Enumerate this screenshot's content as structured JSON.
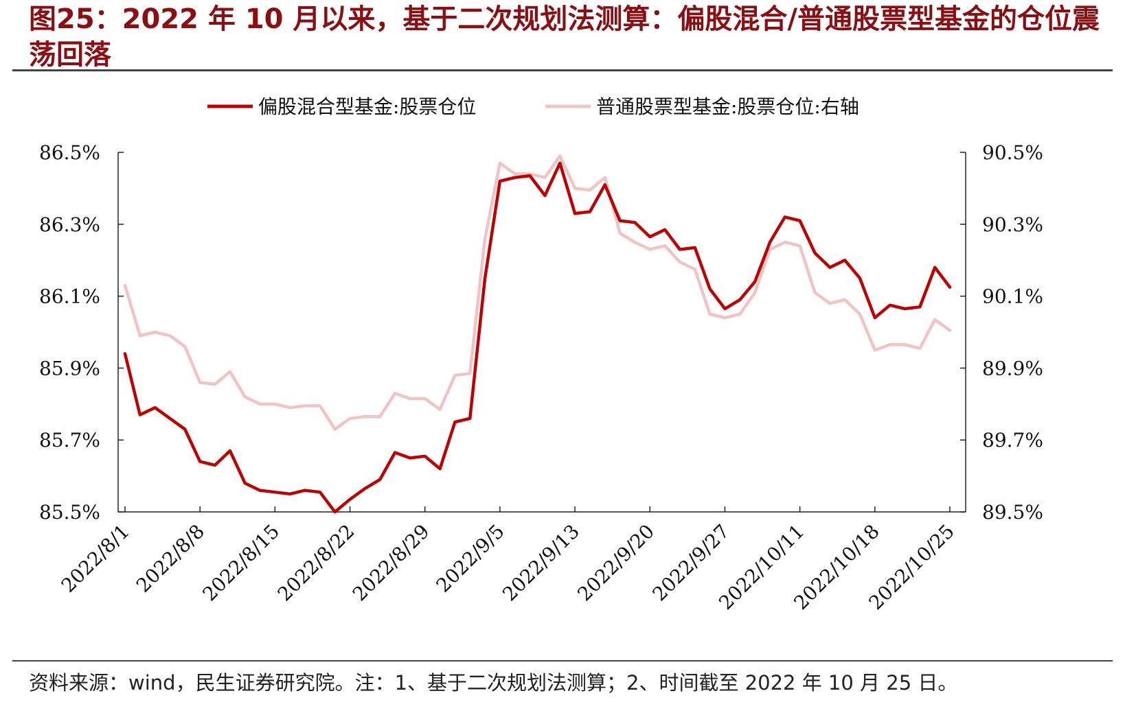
{
  "title": "图25：2022 年 10 月以来，基于二次规划法测算：偏股混合/普通股票型基金的仓位震荡回落",
  "source": "资料来源：wind，民生证券研究院。注：1、基于二次规划法测算；2、时间截至 2022 年 10 月 25 日。",
  "colors": {
    "series1": "#c00000",
    "series2": "#f0c4c4",
    "title": "#8b0f12"
  },
  "chart_data": {
    "type": "line",
    "x_tick_labels": [
      "2022/8/1",
      "2022/8/8",
      "2022/8/15",
      "2022/8/22",
      "2022/8/29",
      "2022/9/5",
      "2022/9/13",
      "2022/9/20",
      "2022/9/27",
      "2022/10/11",
      "2022/10/18",
      "2022/10/25"
    ],
    "y_left": {
      "ticks": [
        "86.5%",
        "86.3%",
        "86.1%",
        "85.9%",
        "85.7%",
        "85.5%"
      ],
      "ylim": [
        85.5,
        86.5
      ]
    },
    "y_right": {
      "ticks": [
        "90.5%",
        "90.3%",
        "90.1%",
        "89.9%",
        "89.7%",
        "89.5%"
      ],
      "ylim": [
        89.5,
        90.5
      ]
    },
    "legend_position": "top",
    "x": [
      "2022/8/1",
      "2022/8/2",
      "2022/8/3",
      "2022/8/4",
      "2022/8/5",
      "2022/8/8",
      "2022/8/9",
      "2022/8/10",
      "2022/8/11",
      "2022/8/12",
      "2022/8/15",
      "2022/8/16",
      "2022/8/17",
      "2022/8/18",
      "2022/8/19",
      "2022/8/22",
      "2022/8/23",
      "2022/8/24",
      "2022/8/25",
      "2022/8/26",
      "2022/8/29",
      "2022/8/30",
      "2022/8/31",
      "2022/9/1",
      "2022/9/2",
      "2022/9/5",
      "2022/9/6",
      "2022/9/7",
      "2022/9/8",
      "2022/9/9",
      "2022/9/13",
      "2022/9/14",
      "2022/9/15",
      "2022/9/16",
      "2022/9/19",
      "2022/9/20",
      "2022/9/21",
      "2022/9/22",
      "2022/9/23",
      "2022/9/26",
      "2022/9/27",
      "2022/9/28",
      "2022/9/29",
      "2022/9/30",
      "2022/10/10",
      "2022/10/11",
      "2022/10/12",
      "2022/10/13",
      "2022/10/14",
      "2022/10/17",
      "2022/10/18",
      "2022/10/19",
      "2022/10/20",
      "2022/10/21",
      "2022/10/24",
      "2022/10/25"
    ],
    "series": [
      {
        "name": "偏股混合型基金:股票仓位",
        "axis": "left",
        "values": [
          85.94,
          85.77,
          85.79,
          85.76,
          85.73,
          85.64,
          85.63,
          85.67,
          85.58,
          85.56,
          85.555,
          85.55,
          85.56,
          85.555,
          85.5,
          85.535,
          85.565,
          85.59,
          85.665,
          85.65,
          85.655,
          85.62,
          85.75,
          85.76,
          86.15,
          86.42,
          86.43,
          86.435,
          86.38,
          86.47,
          86.33,
          86.335,
          86.41,
          86.31,
          86.305,
          86.265,
          86.285,
          86.23,
          86.235,
          86.12,
          86.065,
          86.09,
          86.14,
          86.25,
          86.32,
          86.31,
          86.22,
          86.18,
          86.2,
          86.15,
          86.04,
          86.075,
          86.065,
          86.07,
          86.18,
          86.125
        ]
      },
      {
        "name": "普通股票型基金:股票仓位:右轴",
        "axis": "right",
        "values": [
          90.13,
          89.99,
          90.0,
          89.99,
          89.96,
          89.86,
          89.855,
          89.89,
          89.82,
          89.8,
          89.8,
          89.79,
          89.795,
          89.795,
          89.73,
          89.76,
          89.765,
          89.765,
          89.83,
          89.815,
          89.815,
          89.785,
          89.88,
          89.885,
          90.26,
          90.47,
          90.44,
          90.44,
          90.43,
          90.49,
          90.4,
          90.395,
          90.43,
          90.275,
          90.25,
          90.23,
          90.24,
          90.195,
          90.175,
          90.05,
          90.04,
          90.05,
          90.11,
          90.23,
          90.25,
          90.24,
          90.11,
          90.08,
          90.09,
          90.05,
          89.95,
          89.965,
          89.965,
          89.955,
          90.035,
          90.005
        ]
      }
    ]
  }
}
